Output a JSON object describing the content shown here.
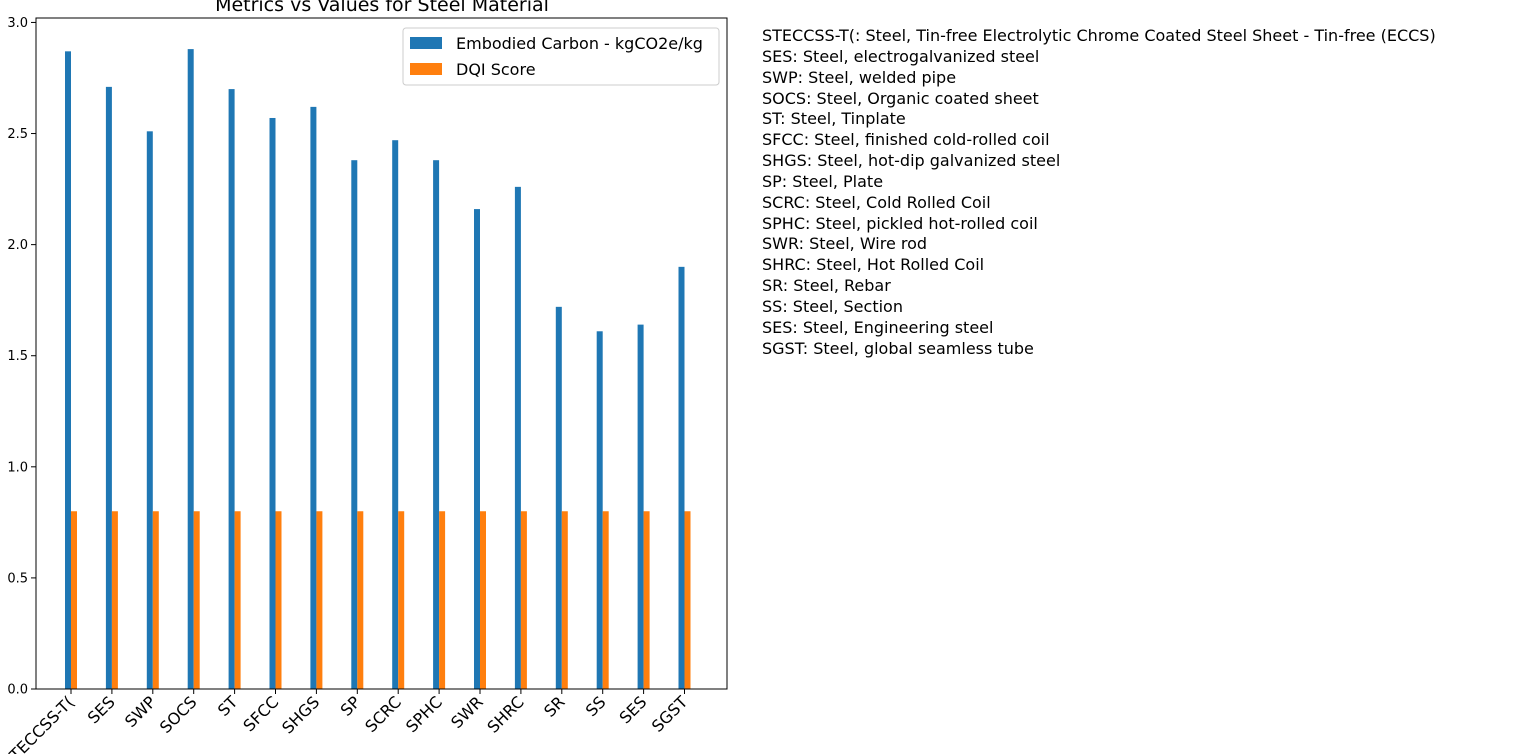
{
  "chart_data": {
    "type": "bar",
    "title": "Metrics vs Values for Steel Material",
    "xlabel": "",
    "ylabel": "",
    "ylim": [
      0,
      3.02
    ],
    "yticks": [
      "0.0",
      "0.5",
      "1.0",
      "1.5",
      "2.0",
      "2.5",
      "3.0"
    ],
    "grid": false,
    "legend_position": "top-right",
    "categories": [
      "STECCSS-T(",
      "SES",
      "SWP",
      "SOCS",
      "ST",
      "SFCC",
      "SHGS",
      "SP",
      "SCRC",
      "SPHC",
      "SWR",
      "SHRC",
      "SR",
      "SS",
      "SES",
      "SGST"
    ],
    "series": [
      {
        "name": "Embodied Carbon - kgCO2e/kg",
        "color": "#1f77b4",
        "values": [
          2.87,
          2.71,
          2.51,
          2.88,
          2.7,
          2.57,
          2.62,
          2.38,
          2.47,
          2.38,
          2.16,
          2.26,
          1.72,
          1.61,
          1.64,
          1.9
        ]
      },
      {
        "name": "DQI Score",
        "color": "#ff7f0e",
        "values": [
          0.8,
          0.8,
          0.8,
          0.8,
          0.8,
          0.8,
          0.8,
          0.8,
          0.8,
          0.8,
          0.8,
          0.8,
          0.8,
          0.8,
          0.8,
          0.8
        ]
      }
    ]
  },
  "notes": [
    "STECCSS-T(: Steel, Tin-free Electrolytic Chrome Coated Steel Sheet - Tin-free (ECCS)",
    "SES: Steel, electrogalvanized steel",
    "SWP: Steel, welded pipe",
    "SOCS: Steel, Organic coated sheet",
    "ST: Steel, Tinplate",
    "SFCC: Steel, finished cold-rolled coil",
    "SHGS: Steel, hot-dip galvanized steel",
    "SP: Steel, Plate",
    "SCRC: Steel, Cold Rolled Coil",
    "SPHC: Steel, pickled hot-rolled coil",
    "SWR: Steel, Wire rod",
    "SHRC: Steel, Hot Rolled Coil",
    "SR: Steel, Rebar",
    "SS: Steel, Section",
    "SES: Steel, Engineering steel",
    "SGST: Steel, global seamless tube"
  ]
}
